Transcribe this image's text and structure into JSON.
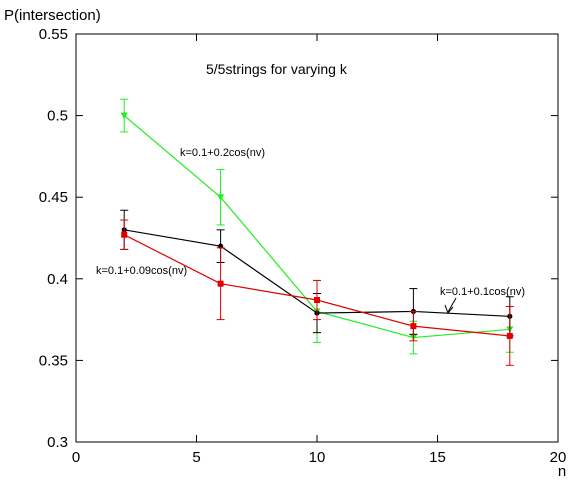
{
  "chart_data": {
    "type": "line",
    "title": "5/5strings for varying k",
    "xlabel": "n",
    "ylabel": "P(intersection)",
    "xlim": [
      0,
      20
    ],
    "ylim": [
      0.3,
      0.55
    ],
    "xticks": [
      "0",
      "5",
      "10",
      "15",
      "20"
    ],
    "yticks": [
      "0.3",
      "0.35",
      "0.4",
      "0.45",
      "0.5",
      "0.55"
    ],
    "grid": false,
    "legend": "none",
    "series": [
      {
        "label": "k=0.1+0.1cos(nv)",
        "color": "#000000",
        "marker": "circle",
        "points": [
          {
            "x": 2,
            "y": 0.43,
            "err": 0.012
          },
          {
            "x": 6,
            "y": 0.42,
            "err": 0.01
          },
          {
            "x": 10,
            "y": 0.379,
            "err": 0.012
          },
          {
            "x": 14,
            "y": 0.38,
            "err": 0.014
          },
          {
            "x": 18,
            "y": 0.377,
            "err": 0.012
          }
        ]
      },
      {
        "label": "k=0.1+0.09cos(nv)",
        "color": "#e00000",
        "marker": "square",
        "points": [
          {
            "x": 2,
            "y": 0.427,
            "err": 0.009
          },
          {
            "x": 6,
            "y": 0.397,
            "err": 0.022
          },
          {
            "x": 10,
            "y": 0.387,
            "err": 0.012
          },
          {
            "x": 14,
            "y": 0.371,
            "err": 0.009
          },
          {
            "x": 18,
            "y": 0.365,
            "err": 0.018
          }
        ]
      },
      {
        "label": "k=0.1+0.2cos(nv)",
        "color": "#22ee22",
        "marker": "triangle-down",
        "points": [
          {
            "x": 2,
            "y": 0.5,
            "err": 0.01
          },
          {
            "x": 6,
            "y": 0.45,
            "err": 0.017
          },
          {
            "x": 10,
            "y": 0.38,
            "err": 0.019
          },
          {
            "x": 14,
            "y": 0.364,
            "err": 0.01
          },
          {
            "x": 18,
            "y": 0.369,
            "err": 0.014
          }
        ]
      }
    ],
    "annotations": [
      {
        "text": "k=0.1+0.2cos(nv)",
        "series": 2
      },
      {
        "text": "k=0.1+0.09cos(nv)",
        "series": 1
      },
      {
        "text": "k=0.1+0.1cos(nv)",
        "series": 0,
        "arrow": true
      }
    ]
  }
}
